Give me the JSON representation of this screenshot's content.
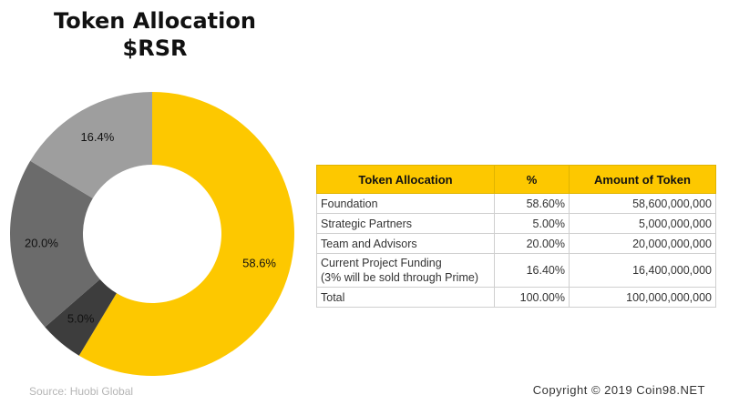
{
  "title_line1": "Token Allocation",
  "title_line2": "$RSR",
  "chart_data": {
    "type": "pie",
    "donut": true,
    "categories": [
      "Foundation",
      "Strategic Partners",
      "Team and Advisors",
      "Current Project Funding"
    ],
    "values": [
      58.6,
      5.0,
      20.0,
      16.4
    ],
    "labels": [
      "58.6%",
      "5.0%",
      "20.0%",
      "16.4%"
    ],
    "colors": [
      "#FDC800",
      "#3d3d3d",
      "#6b6b6b",
      "#9e9e9e"
    ],
    "title": "Token Allocation $RSR"
  },
  "table": {
    "headers": [
      "Token Allocation",
      "%",
      "Amount of Token"
    ],
    "rows": [
      [
        "Foundation",
        "58.60%",
        "58,600,000,000"
      ],
      [
        "Strategic Partners",
        "5.00%",
        "5,000,000,000"
      ],
      [
        "Team and Advisors",
        "20.00%",
        "20,000,000,000"
      ],
      [
        "Current Project Funding",
        "16.40%",
        "16,400,000,000"
      ],
      [
        "Total",
        "100.00%",
        "100,000,000,000"
      ]
    ],
    "funding_note": "(3% will be sold through Prime)"
  },
  "footer": {
    "source": "Source: Huobi Global",
    "copyright": "Copyright © 2019 Coin98.NET"
  }
}
